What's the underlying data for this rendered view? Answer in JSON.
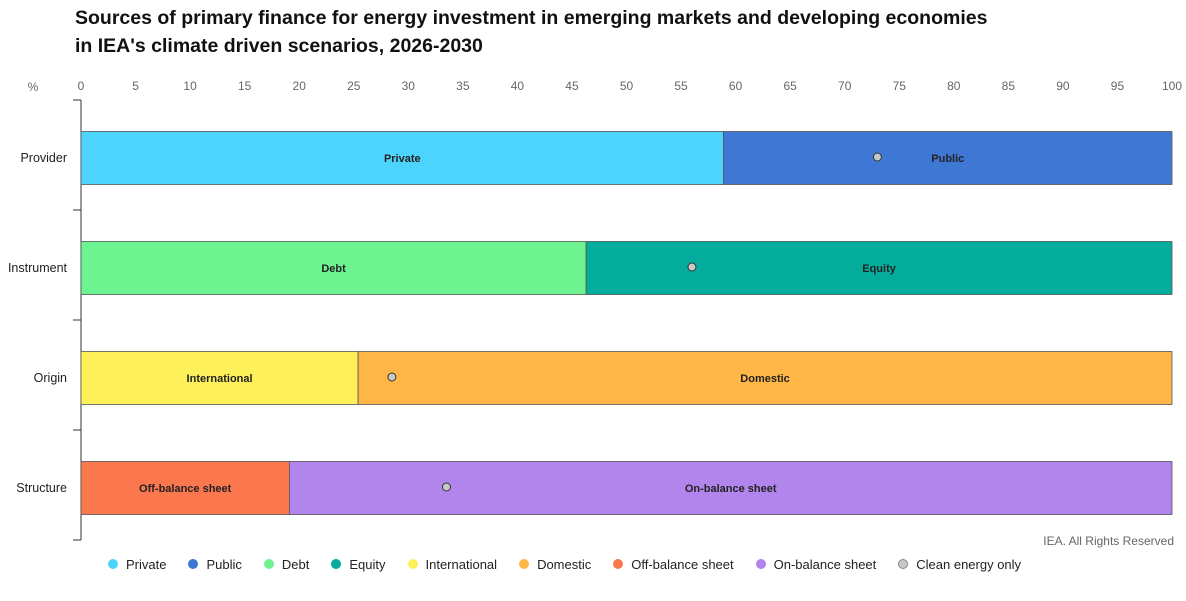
{
  "title_line1": "Sources of primary finance for energy investment in emerging markets and developing economies",
  "title_line2": "in IEA's climate driven scenarios, 2026-2030",
  "credit": "IEA. All Rights Reserved",
  "chart_data": {
    "type": "bar",
    "orientation": "horizontal",
    "stacked": true,
    "x_unit_label": "%",
    "xlim": [
      0,
      100
    ],
    "x_ticks": [
      0,
      5,
      10,
      15,
      20,
      25,
      30,
      35,
      40,
      45,
      50,
      55,
      60,
      65,
      70,
      75,
      80,
      85,
      90,
      95,
      100
    ],
    "categories": [
      "Provider",
      "Instrument",
      "Origin",
      "Structure"
    ],
    "rows": [
      {
        "category": "Provider",
        "segments": [
          {
            "name": "Private",
            "value": 58.9,
            "color": "#4dd4fc"
          },
          {
            "name": "Public",
            "value": 41.1,
            "color": "#3f78d4"
          }
        ],
        "clean_energy_only": 73
      },
      {
        "category": "Instrument",
        "segments": [
          {
            "name": "Debt",
            "value": 46.3,
            "color": "#6ef391"
          },
          {
            "name": "Equity",
            "value": 53.7,
            "color": "#04ac9c"
          }
        ],
        "clean_energy_only": 56
      },
      {
        "category": "Origin",
        "segments": [
          {
            "name": "International",
            "value": 25.4,
            "color": "#fdf059"
          },
          {
            "name": "Domestic",
            "value": 74.6,
            "color": "#feb746"
          }
        ],
        "clean_energy_only": 28.5
      },
      {
        "category": "Structure",
        "segments": [
          {
            "name": "Off-balance sheet",
            "value": 19.1,
            "color": "#fb774e"
          },
          {
            "name": "On-balance sheet",
            "value": 80.9,
            "color": "#b185ec"
          }
        ],
        "clean_energy_only": 33.5
      }
    ],
    "legend": [
      {
        "name": "Private",
        "color": "#4dd4fc"
      },
      {
        "name": "Public",
        "color": "#3f78d4"
      },
      {
        "name": "Debt",
        "color": "#6ef391"
      },
      {
        "name": "Equity",
        "color": "#04ac9c"
      },
      {
        "name": "International",
        "color": "#fdf059"
      },
      {
        "name": "Domestic",
        "color": "#feb746"
      },
      {
        "name": "Off-balance sheet",
        "color": "#fb774e"
      },
      {
        "name": "On-balance sheet",
        "color": "#b185ec"
      },
      {
        "name": "Clean energy only",
        "color": "#c8c8c8"
      }
    ],
    "legend_position": "bottom"
  }
}
